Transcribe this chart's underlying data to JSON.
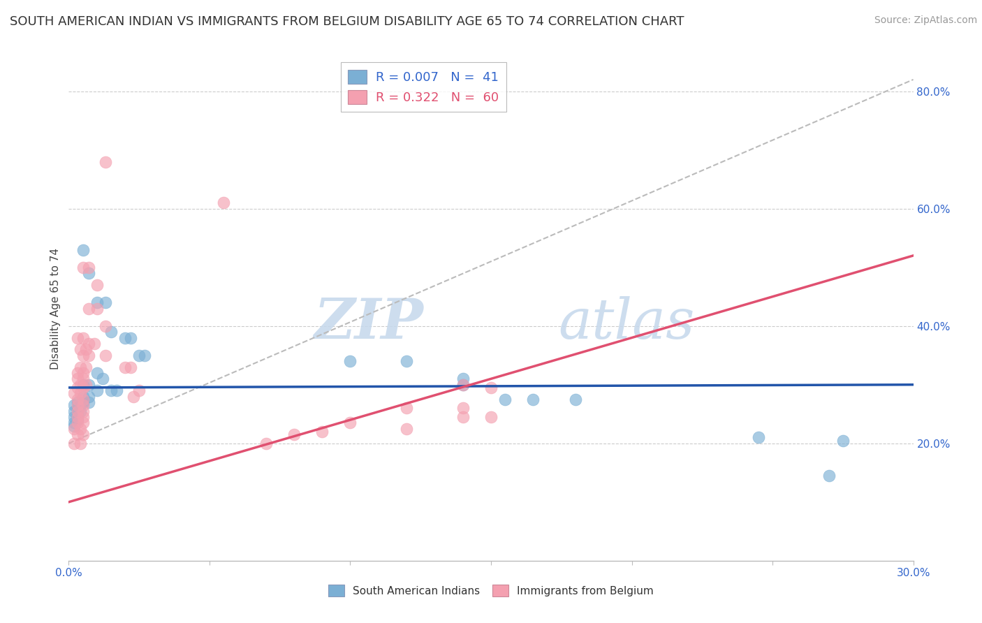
{
  "title": "SOUTH AMERICAN INDIAN VS IMMIGRANTS FROM BELGIUM DISABILITY AGE 65 TO 74 CORRELATION CHART",
  "source": "Source: ZipAtlas.com",
  "ylabel": "Disability Age 65 to 74",
  "xlim": [
    0.0,
    0.3
  ],
  "ylim": [
    0.0,
    0.86
  ],
  "xticks": [
    0.0,
    0.05,
    0.1,
    0.15,
    0.2,
    0.25,
    0.3
  ],
  "xticklabels": [
    "0.0%",
    "",
    "",
    "",
    "",
    "",
    "30.0%"
  ],
  "yticks_right": [
    0.2,
    0.4,
    0.6,
    0.8
  ],
  "ytick_right_labels": [
    "20.0%",
    "40.0%",
    "60.0%",
    "80.0%"
  ],
  "legend_r1": "R = 0.007",
  "legend_n1": "N =  41",
  "legend_r2": "R = 0.322",
  "legend_n2": "N =  60",
  "blue_color": "#7BAFD4",
  "pink_color": "#F4A0B0",
  "blue_trend_color": "#2255AA",
  "pink_trend_color": "#E05070",
  "dash_color": "#BBBBBB",
  "blue_scatter": [
    [
      0.005,
      0.53
    ],
    [
      0.007,
      0.49
    ],
    [
      0.01,
      0.44
    ],
    [
      0.013,
      0.44
    ],
    [
      0.015,
      0.39
    ],
    [
      0.02,
      0.38
    ],
    [
      0.022,
      0.38
    ],
    [
      0.025,
      0.35
    ],
    [
      0.027,
      0.35
    ],
    [
      0.01,
      0.32
    ],
    [
      0.012,
      0.31
    ],
    [
      0.005,
      0.3
    ],
    [
      0.007,
      0.3
    ],
    [
      0.01,
      0.29
    ],
    [
      0.015,
      0.29
    ],
    [
      0.017,
      0.29
    ],
    [
      0.005,
      0.28
    ],
    [
      0.007,
      0.28
    ],
    [
      0.003,
      0.27
    ],
    [
      0.005,
      0.27
    ],
    [
      0.007,
      0.27
    ],
    [
      0.002,
      0.265
    ],
    [
      0.004,
      0.265
    ],
    [
      0.003,
      0.26
    ],
    [
      0.002,
      0.255
    ],
    [
      0.004,
      0.255
    ],
    [
      0.003,
      0.25
    ],
    [
      0.002,
      0.245
    ],
    [
      0.003,
      0.24
    ],
    [
      0.002,
      0.235
    ],
    [
      0.002,
      0.23
    ],
    [
      0.1,
      0.34
    ],
    [
      0.12,
      0.34
    ],
    [
      0.14,
      0.31
    ],
    [
      0.14,
      0.3
    ],
    [
      0.155,
      0.275
    ],
    [
      0.165,
      0.275
    ],
    [
      0.18,
      0.275
    ],
    [
      0.245,
      0.21
    ],
    [
      0.27,
      0.145
    ],
    [
      0.275,
      0.205
    ]
  ],
  "pink_scatter": [
    [
      0.013,
      0.68
    ],
    [
      0.005,
      0.5
    ],
    [
      0.007,
      0.5
    ],
    [
      0.01,
      0.47
    ],
    [
      0.007,
      0.43
    ],
    [
      0.01,
      0.43
    ],
    [
      0.013,
      0.4
    ],
    [
      0.003,
      0.38
    ],
    [
      0.005,
      0.38
    ],
    [
      0.007,
      0.37
    ],
    [
      0.009,
      0.37
    ],
    [
      0.004,
      0.36
    ],
    [
      0.006,
      0.36
    ],
    [
      0.005,
      0.35
    ],
    [
      0.007,
      0.35
    ],
    [
      0.004,
      0.33
    ],
    [
      0.006,
      0.33
    ],
    [
      0.003,
      0.32
    ],
    [
      0.005,
      0.32
    ],
    [
      0.003,
      0.31
    ],
    [
      0.005,
      0.31
    ],
    [
      0.004,
      0.3
    ],
    [
      0.006,
      0.3
    ],
    [
      0.003,
      0.295
    ],
    [
      0.005,
      0.295
    ],
    [
      0.002,
      0.285
    ],
    [
      0.004,
      0.285
    ],
    [
      0.003,
      0.275
    ],
    [
      0.005,
      0.275
    ],
    [
      0.003,
      0.265
    ],
    [
      0.005,
      0.265
    ],
    [
      0.003,
      0.255
    ],
    [
      0.005,
      0.255
    ],
    [
      0.003,
      0.245
    ],
    [
      0.005,
      0.245
    ],
    [
      0.003,
      0.235
    ],
    [
      0.005,
      0.235
    ],
    [
      0.002,
      0.225
    ],
    [
      0.004,
      0.225
    ],
    [
      0.003,
      0.215
    ],
    [
      0.005,
      0.215
    ],
    [
      0.002,
      0.2
    ],
    [
      0.004,
      0.2
    ],
    [
      0.013,
      0.35
    ],
    [
      0.02,
      0.33
    ],
    [
      0.022,
      0.33
    ],
    [
      0.025,
      0.29
    ],
    [
      0.023,
      0.28
    ],
    [
      0.14,
      0.3
    ],
    [
      0.15,
      0.295
    ],
    [
      0.12,
      0.26
    ],
    [
      0.14,
      0.26
    ],
    [
      0.14,
      0.245
    ],
    [
      0.15,
      0.245
    ],
    [
      0.1,
      0.235
    ],
    [
      0.12,
      0.225
    ],
    [
      0.09,
      0.22
    ],
    [
      0.08,
      0.215
    ],
    [
      0.07,
      0.2
    ],
    [
      0.055,
      0.61
    ]
  ],
  "background_color": "#FFFFFF",
  "grid_color": "#DDDDDD",
  "watermark_zip": "ZIP",
  "watermark_atlas": "atlas",
  "title_fontsize": 13,
  "axis_label_fontsize": 11,
  "tick_fontsize": 11,
  "source_fontsize": 10,
  "legend_fontsize": 13
}
